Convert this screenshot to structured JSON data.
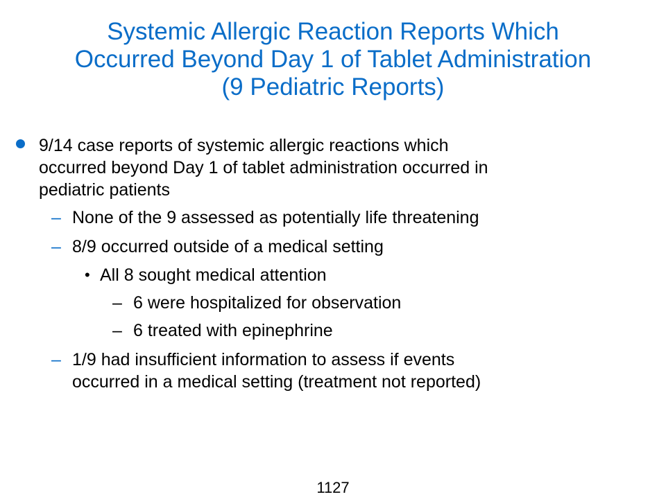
{
  "title": {
    "line1": "Systemic Allergic Reaction Reports Which",
    "line2": "Occurred Beyond Day 1 of Tablet Administration",
    "line3": "(9 Pediatric Reports)"
  },
  "bullet": {
    "line1": "9/14 case reports of systemic allergic reactions which",
    "line2": "occurred beyond Day 1 of tablet administration occurred in",
    "line3": "pediatric patients"
  },
  "sub_items": {
    "item1": "None of the 9 assessed as potentially life threatening",
    "item2": "8/9 occurred outside of a medical setting",
    "item2_sub": "All 8 sought medical attention",
    "item2_sub_sub1": "6 were hospitalized for observation",
    "item2_sub_sub2": "6 treated with epinephrine",
    "item3_line1": "1/9 had insufficient information to assess if events",
    "item3_line2": "occurred in a medical setting (treatment not reported)"
  },
  "symbols": {
    "dash": "–",
    "small_bullet": "•"
  },
  "page_number": "1127",
  "colors": {
    "accent": "#0A6DC8",
    "text": "#000000",
    "background": "#ffffff"
  }
}
